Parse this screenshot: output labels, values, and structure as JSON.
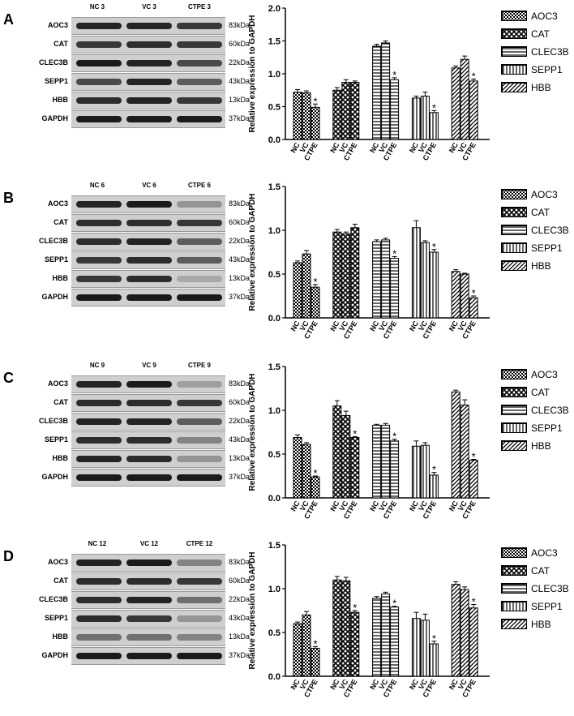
{
  "legend": [
    "AOC3",
    "CAT",
    "CLEC3B",
    "SEPP1",
    "HBB"
  ],
  "blot_rows": [
    "AOC3",
    "CAT",
    "CLEC3B",
    "SEPP1",
    "HBB",
    "GAPDH"
  ],
  "kda": [
    "83kDa",
    "60kDa",
    "22kDa",
    "43kDa",
    "13kDa",
    "37kDa"
  ],
  "x_ticks": [
    "NC",
    "VC",
    "CTPE"
  ],
  "ylabel": "Relative expression to GAPDH",
  "significance_marker": "*",
  "panels": [
    {
      "label": "A",
      "lanes": [
        "NC 3",
        "VC 3",
        "CTPE 3"
      ],
      "band_intensity": [
        [
          0.9,
          0.9,
          0.8
        ],
        [
          0.8,
          0.85,
          0.8
        ],
        [
          0.95,
          0.9,
          0.7
        ],
        [
          0.7,
          0.9,
          0.6
        ],
        [
          0.85,
          0.9,
          0.8
        ],
        [
          0.95,
          0.95,
          0.95
        ]
      ]
    },
    {
      "label": "B",
      "lanes": [
        "NC 6",
        "VC 6",
        "CTPE 6"
      ],
      "band_intensity": [
        [
          0.9,
          0.95,
          0.3
        ],
        [
          0.85,
          0.85,
          0.8
        ],
        [
          0.85,
          0.9,
          0.6
        ],
        [
          0.8,
          0.85,
          0.6
        ],
        [
          0.8,
          0.85,
          0.2
        ],
        [
          0.95,
          0.95,
          0.95
        ]
      ]
    },
    {
      "label": "C",
      "lanes": [
        "NC 9",
        "VC 9",
        "CTPE 9"
      ],
      "band_intensity": [
        [
          0.9,
          0.95,
          0.25
        ],
        [
          0.85,
          0.85,
          0.8
        ],
        [
          0.9,
          0.9,
          0.6
        ],
        [
          0.85,
          0.85,
          0.4
        ],
        [
          0.9,
          0.85,
          0.3
        ],
        [
          0.95,
          0.95,
          0.95
        ]
      ]
    },
    {
      "label": "D",
      "lanes": [
        "NC 12",
        "VC 12",
        "CTPE 12"
      ],
      "band_intensity": [
        [
          0.9,
          0.95,
          0.4
        ],
        [
          0.85,
          0.85,
          0.8
        ],
        [
          0.85,
          0.9,
          0.5
        ],
        [
          0.85,
          0.8,
          0.3
        ],
        [
          0.5,
          0.5,
          0.4
        ],
        [
          0.95,
          0.95,
          0.95
        ]
      ]
    }
  ],
  "chart_data": [
    {
      "type": "bar",
      "panel": "A",
      "ylabel": "Relative expression to GAPDH",
      "ylim": [
        0,
        2.0
      ],
      "yticks": [
        "0.0",
        "0.5",
        "1.0",
        "1.5",
        "2.0"
      ],
      "ytick_values": [
        0,
        0.5,
        1.0,
        1.5,
        2.0
      ],
      "groups": [
        "AOC3",
        "CAT",
        "CLEC3B",
        "SEPP1",
        "HBB"
      ],
      "categories": [
        "NC",
        "VC",
        "CTPE"
      ],
      "values": [
        [
          0.72,
          0.71,
          0.49
        ],
        [
          0.75,
          0.87,
          0.87
        ],
        [
          1.42,
          1.47,
          0.91
        ],
        [
          0.63,
          0.66,
          0.41
        ],
        [
          1.09,
          1.22,
          0.89
        ]
      ],
      "errors": [
        [
          0.04,
          0.03,
          0.05
        ],
        [
          0.04,
          0.04,
          0.02
        ],
        [
          0.03,
          0.03,
          0.03
        ],
        [
          0.03,
          0.06,
          0.03
        ],
        [
          0.03,
          0.05,
          0.03
        ]
      ],
      "significant": [
        [
          false,
          false,
          true
        ],
        [
          false,
          false,
          false
        ],
        [
          false,
          false,
          true
        ],
        [
          false,
          false,
          true
        ],
        [
          false,
          false,
          true
        ]
      ]
    },
    {
      "type": "bar",
      "panel": "B",
      "ylabel": "Relative expression to GAPDH",
      "ylim": [
        0,
        1.5
      ],
      "yticks": [
        "0.0",
        "0.5",
        "1.0",
        "1.5"
      ],
      "ytick_values": [
        0,
        0.5,
        1.0,
        1.5
      ],
      "groups": [
        "AOC3",
        "CAT",
        "CLEC3B",
        "SEPP1",
        "HBB"
      ],
      "categories": [
        "NC",
        "VC",
        "CTPE"
      ],
      "values": [
        [
          0.63,
          0.73,
          0.35
        ],
        [
          0.98,
          0.96,
          1.03
        ],
        [
          0.87,
          0.89,
          0.68
        ],
        [
          1.03,
          0.86,
          0.75
        ],
        [
          0.53,
          0.5,
          0.23
        ]
      ],
      "errors": [
        [
          0.02,
          0.04,
          0.03
        ],
        [
          0.03,
          0.02,
          0.04
        ],
        [
          0.02,
          0.02,
          0.02
        ],
        [
          0.08,
          0.02,
          0.03
        ],
        [
          0.02,
          0.01,
          0.02
        ]
      ],
      "significant": [
        [
          false,
          false,
          true
        ],
        [
          false,
          false,
          false
        ],
        [
          false,
          false,
          true
        ],
        [
          false,
          false,
          true
        ],
        [
          false,
          false,
          true
        ]
      ]
    },
    {
      "type": "bar",
      "panel": "C",
      "ylabel": "Relative expression to GAPDH",
      "ylim": [
        0,
        1.5
      ],
      "yticks": [
        "0.0",
        "0.5",
        "1.0",
        "1.5"
      ],
      "ytick_values": [
        0,
        0.5,
        1.0,
        1.5
      ],
      "groups": [
        "AOC3",
        "CAT",
        "CLEC3B",
        "SEPP1",
        "HBB"
      ],
      "categories": [
        "NC",
        "VC",
        "CTPE"
      ],
      "values": [
        [
          0.69,
          0.61,
          0.24
        ],
        [
          1.05,
          0.94,
          0.69
        ],
        [
          0.83,
          0.83,
          0.65
        ],
        [
          0.59,
          0.6,
          0.26
        ],
        [
          1.21,
          1.06,
          0.43
        ]
      ],
      "errors": [
        [
          0.03,
          0.02,
          0.01
        ],
        [
          0.06,
          0.05,
          0.01
        ],
        [
          0.01,
          0.02,
          0.02
        ],
        [
          0.06,
          0.03,
          0.03
        ],
        [
          0.02,
          0.06,
          0.01
        ]
      ],
      "significant": [
        [
          false,
          false,
          true
        ],
        [
          false,
          false,
          true
        ],
        [
          false,
          false,
          true
        ],
        [
          false,
          false,
          true
        ],
        [
          false,
          false,
          true
        ]
      ]
    },
    {
      "type": "bar",
      "panel": "D",
      "ylabel": "Relative expression to GAPDH",
      "ylim": [
        0,
        1.5
      ],
      "yticks": [
        "0.0",
        "0.5",
        "1.0",
        "1.5"
      ],
      "ytick_values": [
        0,
        0.5,
        1.0,
        1.5
      ],
      "groups": [
        "AOC3",
        "CAT",
        "CLEC3B",
        "SEPP1",
        "HBB"
      ],
      "categories": [
        "NC",
        "VC",
        "CTPE"
      ],
      "values": [
        [
          0.6,
          0.7,
          0.32
        ],
        [
          1.1,
          1.09,
          0.73
        ],
        [
          0.89,
          0.94,
          0.79
        ],
        [
          0.66,
          0.64,
          0.37
        ],
        [
          1.05,
          0.99,
          0.78
        ]
      ],
      "errors": [
        [
          0.02,
          0.04,
          0.02
        ],
        [
          0.04,
          0.04,
          0.02
        ],
        [
          0.02,
          0.02,
          0.01
        ],
        [
          0.07,
          0.07,
          0.03
        ],
        [
          0.03,
          0.03,
          0.04
        ]
      ],
      "significant": [
        [
          false,
          false,
          true
        ],
        [
          false,
          false,
          true
        ],
        [
          false,
          false,
          true
        ],
        [
          false,
          false,
          true
        ],
        [
          false,
          false,
          true
        ]
      ]
    }
  ]
}
